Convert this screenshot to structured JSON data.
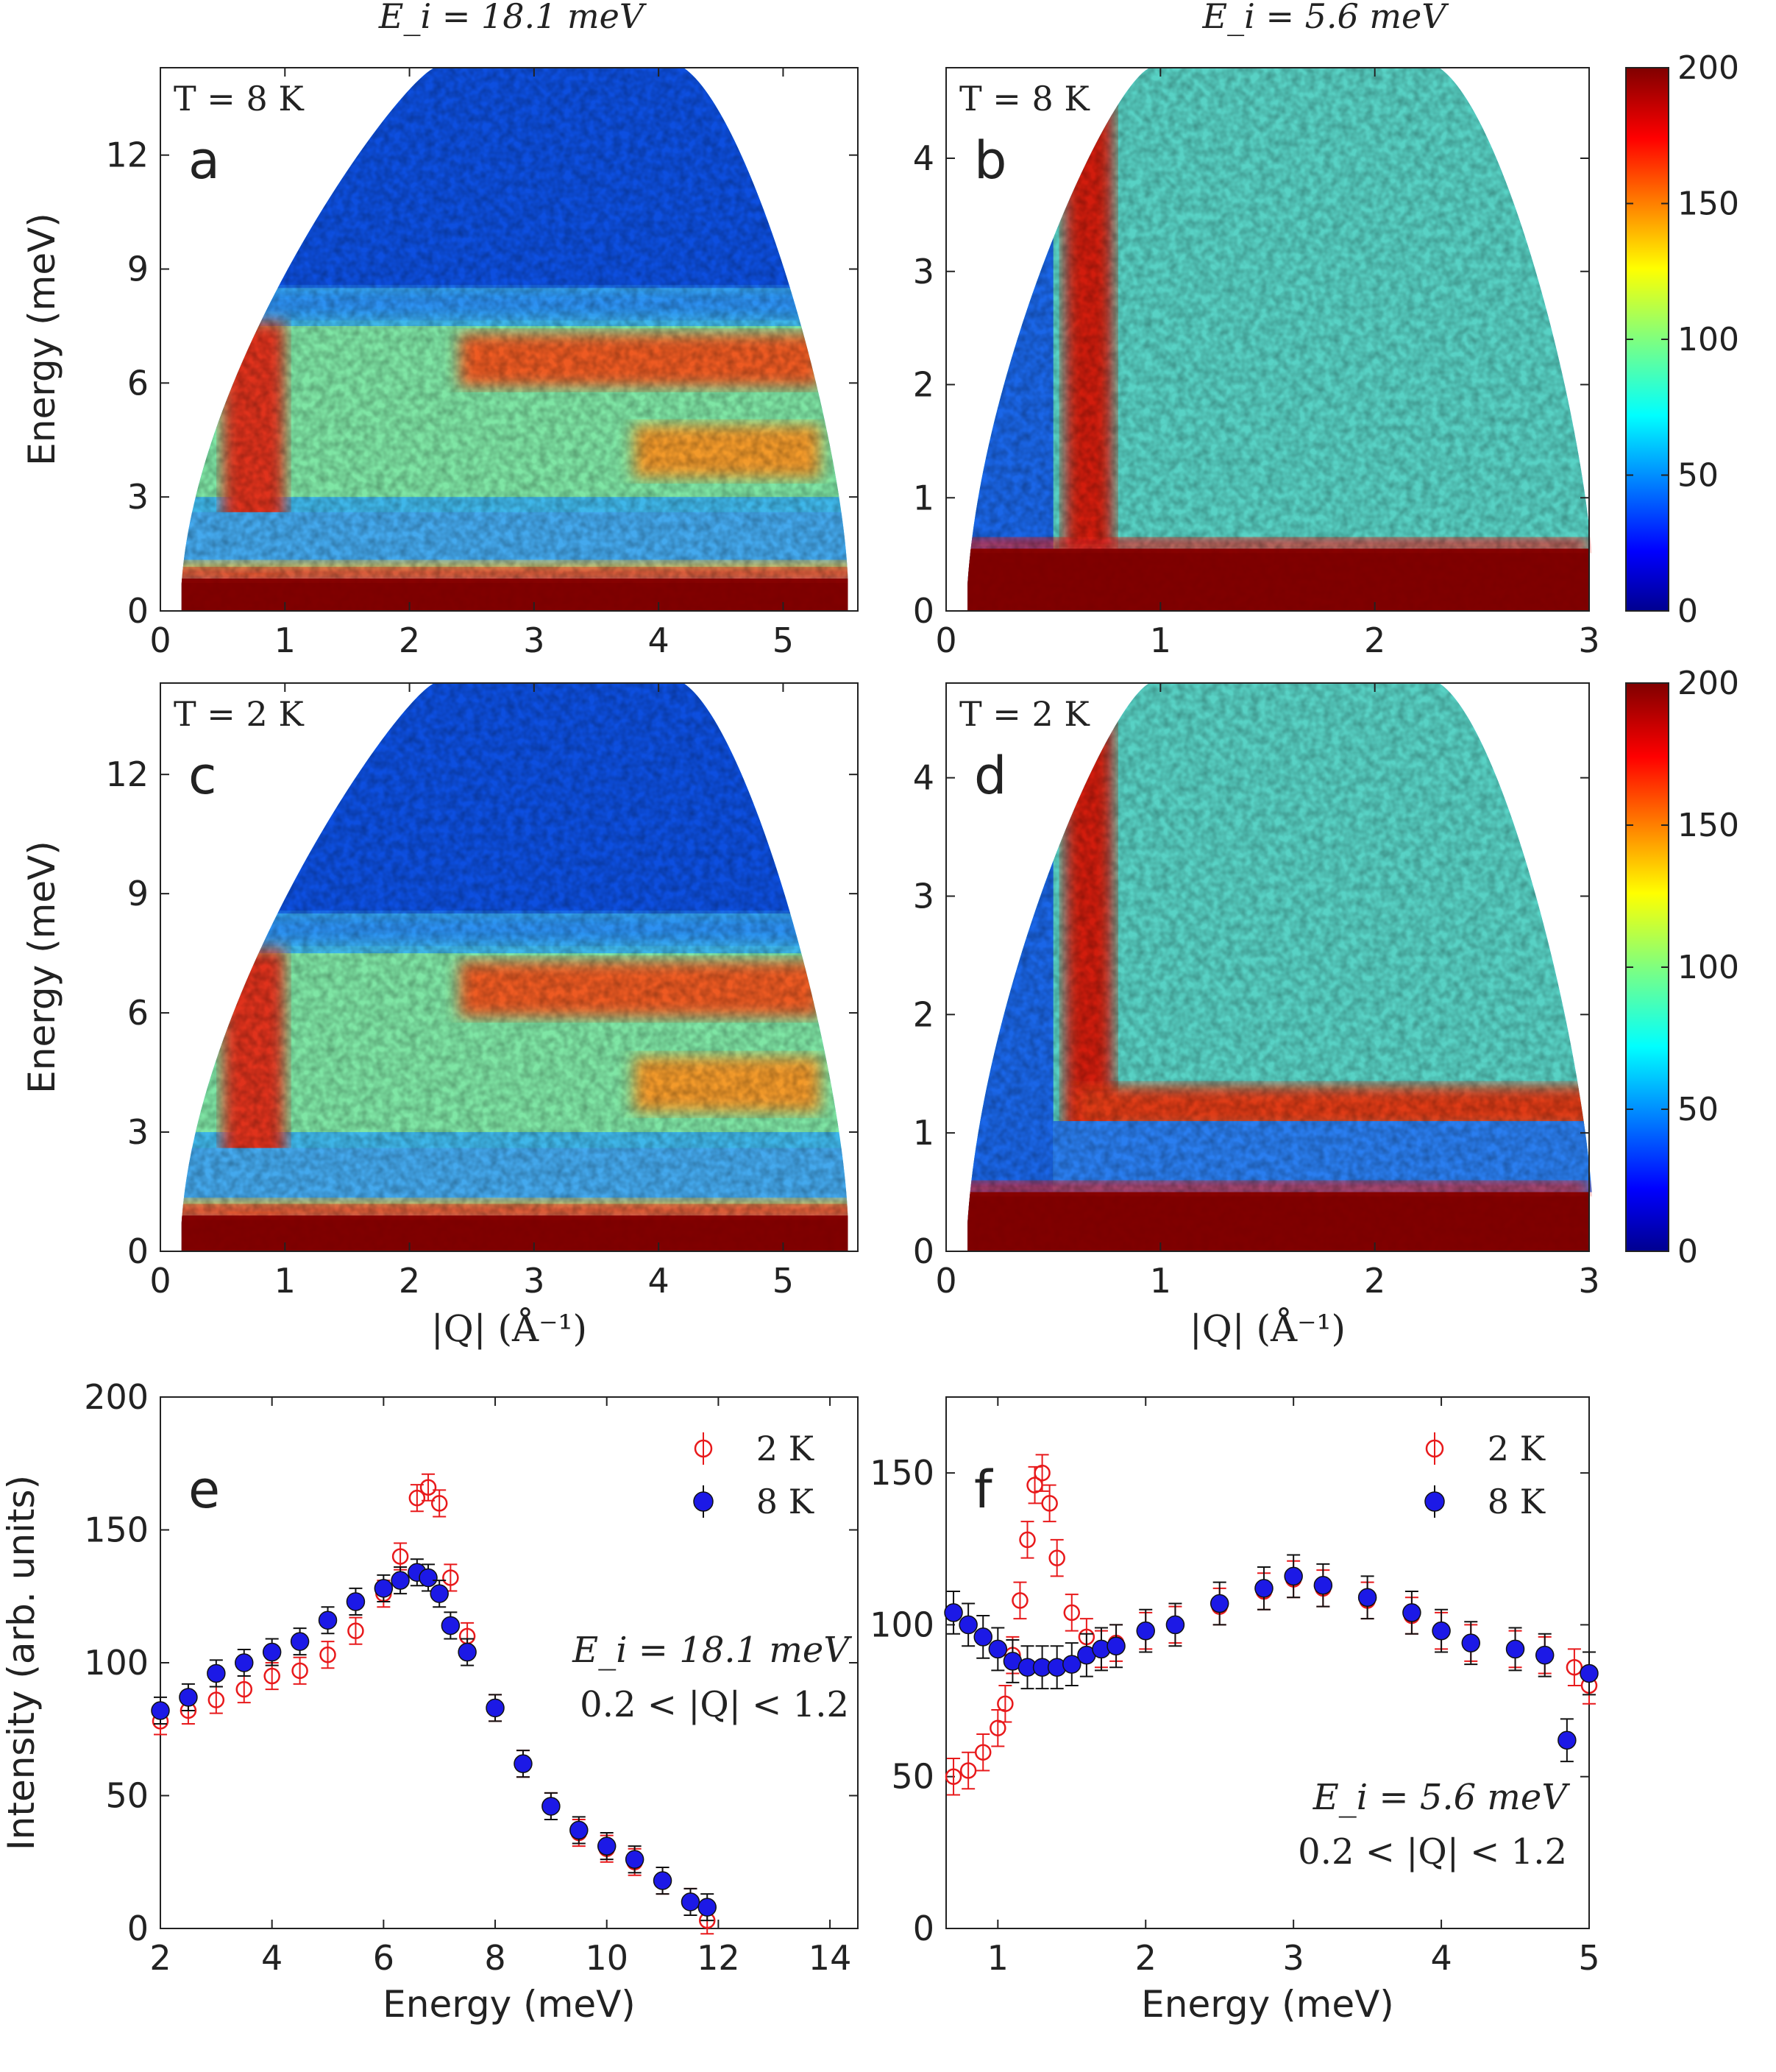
{
  "figure": {
    "column_titles": [
      "E_i = 18.1 meV",
      "E_i = 5.6 meV"
    ],
    "colorbars": [
      {
        "ticks": [
          0,
          50,
          100,
          150,
          200
        ],
        "range": [
          0,
          200
        ],
        "colormap": "jet"
      },
      {
        "ticks": [
          0,
          50,
          100,
          150,
          200
        ],
        "range": [
          0,
          200
        ],
        "colormap": "jet"
      }
    ]
  },
  "chart_data": [
    {
      "panel": "a",
      "type": "heatmap",
      "temperature_label": "T = 8 K",
      "xlabel": "",
      "ylabel": "Energy (meV)",
      "xlim": [
        0,
        5.6
      ],
      "ylim": [
        0,
        14.3
      ],
      "xticks": [
        0,
        1,
        2,
        3,
        4,
        5
      ],
      "yticks": [
        0,
        3,
        6,
        9,
        12
      ],
      "color_range": [
        0,
        200
      ],
      "features": {
        "elastic_line_top_meV": 0.85,
        "band_meV": [
          3,
          7.5
        ],
        "band_peak_meV": 6.5,
        "low_q_column_Q": 0.7
      }
    },
    {
      "panel": "b",
      "type": "heatmap",
      "temperature_label": "T = 8 K",
      "xlabel": "",
      "ylabel": "",
      "xlim": [
        0,
        3
      ],
      "ylim": [
        0,
        4.8
      ],
      "xticks": [
        0,
        1,
        2,
        3
      ],
      "yticks": [
        0,
        1,
        2,
        3,
        4
      ],
      "color_range": [
        0,
        200
      ],
      "features": {
        "elastic_line_top_meV": 0.55,
        "low_q_column_Q": 0.6
      }
    },
    {
      "panel": "c",
      "type": "heatmap",
      "temperature_label": "T = 2 K",
      "xlabel": "|Q| (Å⁻¹)",
      "ylabel": "Energy (meV)",
      "xlim": [
        0,
        5.6
      ],
      "ylim": [
        0,
        14.3
      ],
      "xticks": [
        0,
        1,
        2,
        3,
        4,
        5
      ],
      "yticks": [
        0,
        3,
        6,
        9,
        12
      ],
      "color_range": [
        0,
        200
      ],
      "features": {
        "elastic_line_top_meV": 0.9,
        "band_meV": [
          3,
          7.5
        ],
        "band_peak_meV": 6.8,
        "low_q_column_Q": 0.7
      }
    },
    {
      "panel": "d",
      "type": "heatmap",
      "temperature_label": "T = 2 K",
      "xlabel": "|Q| (Å⁻¹)",
      "ylabel": "",
      "xlim": [
        0,
        3
      ],
      "ylim": [
        0,
        4.8
      ],
      "xticks": [
        0,
        1,
        2,
        3
      ],
      "yticks": [
        0,
        1,
        2,
        3,
        4
      ],
      "color_range": [
        0,
        200
      ],
      "features": {
        "elastic_line_top_meV": 0.5,
        "gap_line_meV": 1.2,
        "low_q_column_Q": 0.55
      }
    },
    {
      "panel": "e",
      "type": "scatter",
      "annotation": [
        "E_i = 18.1 meV",
        "0.2 < |Q| < 1.2"
      ],
      "xlabel": "Energy (meV)",
      "ylabel": "Intensity (arb. units)",
      "xlim": [
        2,
        14.5
      ],
      "ylim": [
        0,
        200
      ],
      "xticks": [
        2,
        4,
        6,
        8,
        10,
        12,
        14
      ],
      "yticks": [
        0,
        50,
        100,
        150,
        200
      ],
      "legend_position": "top-right",
      "series": [
        {
          "name": "2 K",
          "marker": "open-circle",
          "color": "#e8191b",
          "x": [
            2.0,
            2.5,
            3.0,
            3.5,
            4.0,
            4.5,
            5.0,
            5.5,
            6.0,
            6.3,
            6.6,
            6.8,
            7.0,
            7.2,
            7.5,
            8.0,
            8.5,
            9.0,
            9.5,
            10.0,
            10.5,
            11.0,
            11.5,
            11.8
          ],
          "y": [
            78,
            82,
            86,
            90,
            95,
            97,
            103,
            112,
            126,
            140,
            162,
            166,
            160,
            132,
            110,
            83,
            62,
            46,
            36,
            30,
            25,
            18,
            10,
            3
          ],
          "err": 5
        },
        {
          "name": "8 K",
          "marker": "filled-circle",
          "color": "#1c19e6",
          "x": [
            2.0,
            2.5,
            3.0,
            3.5,
            4.0,
            4.5,
            5.0,
            5.5,
            6.0,
            6.3,
            6.6,
            6.8,
            7.0,
            7.2,
            7.5,
            8.0,
            8.5,
            9.0,
            9.5,
            10.0,
            10.5,
            11.0,
            11.5,
            11.8
          ],
          "y": [
            82,
            87,
            96,
            100,
            104,
            108,
            116,
            123,
            128,
            131,
            134,
            132,
            126,
            114,
            104,
            83,
            62,
            46,
            37,
            31,
            26,
            18,
            10,
            8
          ],
          "err": 5
        }
      ]
    },
    {
      "panel": "f",
      "type": "scatter",
      "annotation": [
        "E_i = 5.6 meV",
        "0.2 < |Q| < 1.2"
      ],
      "xlabel": "Energy (meV)",
      "ylabel": "",
      "xlim": [
        0.65,
        5.0
      ],
      "ylim": [
        0,
        175
      ],
      "xticks": [
        1,
        2,
        3,
        4,
        5
      ],
      "yticks": [
        0,
        50,
        100,
        150
      ],
      "legend_position": "top-right",
      "series": [
        {
          "name": "2 K",
          "marker": "open-circle",
          "color": "#e8191b",
          "x": [
            0.7,
            0.8,
            0.9,
            1.0,
            1.05,
            1.1,
            1.15,
            1.2,
            1.25,
            1.3,
            1.35,
            1.4,
            1.5,
            1.6,
            1.7,
            1.8,
            2.0,
            2.2,
            2.5,
            2.8,
            3.0,
            3.2,
            3.5,
            3.8,
            4.0,
            4.2,
            4.5,
            4.7,
            4.9,
            5.0
          ],
          "y": [
            50,
            52,
            58,
            66,
            74,
            90,
            108,
            128,
            146,
            150,
            140,
            122,
            104,
            96,
            92,
            94,
            98,
            100,
            106,
            111,
            115,
            112,
            108,
            103,
            98,
            94,
            92,
            90,
            86,
            80
          ],
          "err": 6
        },
        {
          "name": "8 K",
          "marker": "filled-circle",
          "color": "#1c19e6",
          "x": [
            0.7,
            0.8,
            0.9,
            1.0,
            1.1,
            1.2,
            1.3,
            1.4,
            1.5,
            1.6,
            1.7,
            1.8,
            2.0,
            2.2,
            2.5,
            2.8,
            3.0,
            3.2,
            3.5,
            3.8,
            4.0,
            4.2,
            4.5,
            4.7,
            4.85,
            5.0
          ],
          "y": [
            104,
            100,
            96,
            92,
            88,
            86,
            86,
            86,
            87,
            90,
            92,
            93,
            98,
            100,
            107,
            112,
            116,
            113,
            109,
            104,
            98,
            94,
            92,
            90,
            62,
            84
          ],
          "err": 7
        }
      ]
    }
  ]
}
